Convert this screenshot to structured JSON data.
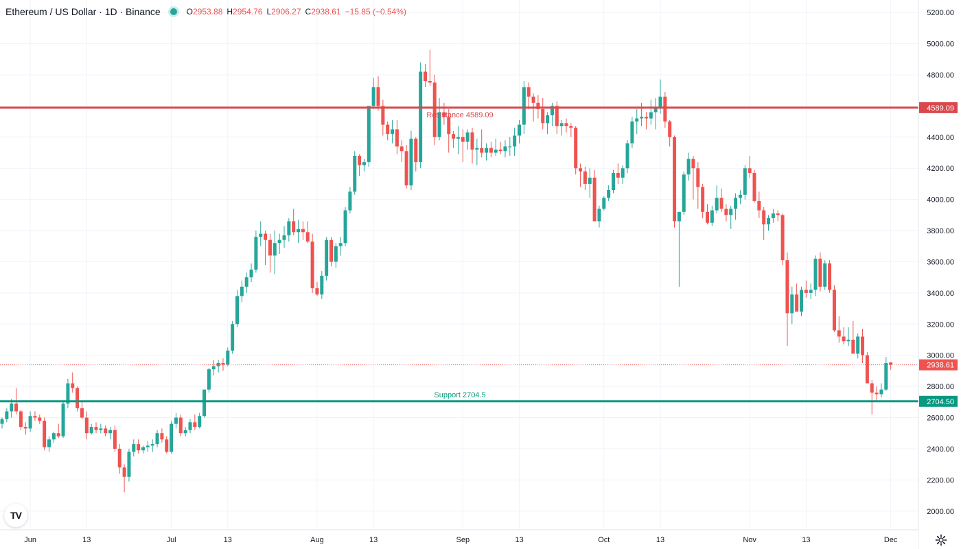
{
  "legend": {
    "symbol": "Ethereum / US Dollar · 1D · Binance",
    "open_label": "O",
    "open": "2953.88",
    "high_label": "H",
    "high": "2954.76",
    "low_label": "L",
    "low": "2906.27",
    "close_label": "C",
    "close": "2938.61",
    "change": "−15.85 (−0.54%)"
  },
  "colors": {
    "up": "#26a69a",
    "down": "#ef5350",
    "resistance": "#d9484c",
    "support": "#089981",
    "grid": "#f0f3fa",
    "text": "#131722"
  },
  "chart_data": {
    "type": "candlestick",
    "title": "Ethereum / US Dollar · 1D · Binance",
    "ylim": [
      1880,
      5280
    ],
    "y_ticks": [
      2000,
      2200,
      2400,
      2600,
      2800,
      3000,
      3200,
      3400,
      3600,
      3800,
      4000,
      4200,
      4400,
      4600,
      4800,
      5000,
      5200
    ],
    "y_tick_labels": [
      "2000.00",
      "2200.00",
      "2400.00",
      "2600.00",
      "2800.00",
      "3000.00",
      "3200.00",
      "3400.00",
      "3600.00",
      "3800.00",
      "4000.00",
      "4200.00",
      "4400.00",
      "4600.00",
      "4800.00",
      "5000.00",
      "5200.00"
    ],
    "x_ticks": [
      {
        "label": "Jun",
        "date": "2025-06-01"
      },
      {
        "label": "13",
        "date": "2025-06-13"
      },
      {
        "label": "Jul",
        "date": "2025-07-01"
      },
      {
        "label": "13",
        "date": "2025-07-13"
      },
      {
        "label": "Aug",
        "date": "2025-08-01"
      },
      {
        "label": "13",
        "date": "2025-08-13"
      },
      {
        "label": "Sep",
        "date": "2025-09-01"
      },
      {
        "label": "13",
        "date": "2025-09-13"
      },
      {
        "label": "Oct",
        "date": "2025-10-01"
      },
      {
        "label": "13",
        "date": "2025-10-13"
      },
      {
        "label": "Nov",
        "date": "2025-11-01"
      },
      {
        "label": "13",
        "date": "2025-11-13"
      },
      {
        "label": "Dec",
        "date": "2025-12-01"
      }
    ],
    "start_date": "2025-05-26",
    "levels": [
      {
        "name": "Resistance",
        "value": 4589.09,
        "label": "Resistance 4589.09",
        "axis_label": "4589.09",
        "color": "#d9484c"
      },
      {
        "name": "Support",
        "value": 2704.5,
        "label": "Support 2704.5",
        "axis_label": "2704.50",
        "color": "#089981"
      }
    ],
    "last_price": {
      "value": 2938.61,
      "label": "2938.61"
    },
    "candles": [
      [
        2560,
        2600,
        2530,
        2590
      ],
      [
        2590,
        2660,
        2570,
        2640
      ],
      [
        2640,
        2720,
        2600,
        2690
      ],
      [
        2690,
        2790,
        2620,
        2640
      ],
      [
        2640,
        2650,
        2520,
        2540
      ],
      [
        2540,
        2570,
        2490,
        2530
      ],
      [
        2530,
        2640,
        2510,
        2610
      ],
      [
        2610,
        2640,
        2580,
        2600
      ],
      [
        2600,
        2620,
        2560,
        2580
      ],
      [
        2580,
        2600,
        2390,
        2410
      ],
      [
        2410,
        2480,
        2380,
        2460
      ],
      [
        2460,
        2510,
        2440,
        2500
      ],
      [
        2500,
        2560,
        2470,
        2480
      ],
      [
        2480,
        2700,
        2470,
        2690
      ],
      [
        2690,
        2850,
        2660,
        2820
      ],
      [
        2820,
        2890,
        2760,
        2790
      ],
      [
        2790,
        2800,
        2640,
        2660
      ],
      [
        2660,
        2700,
        2590,
        2600
      ],
      [
        2600,
        2640,
        2460,
        2500
      ],
      [
        2500,
        2560,
        2490,
        2540
      ],
      [
        2540,
        2570,
        2500,
        2520
      ],
      [
        2520,
        2560,
        2500,
        2530
      ],
      [
        2530,
        2550,
        2480,
        2500
      ],
      [
        2500,
        2540,
        2460,
        2520
      ],
      [
        2520,
        2550,
        2380,
        2400
      ],
      [
        2400,
        2430,
        2240,
        2280
      ],
      [
        2280,
        2300,
        2120,
        2220
      ],
      [
        2220,
        2400,
        2190,
        2380
      ],
      [
        2380,
        2460,
        2350,
        2430
      ],
      [
        2430,
        2460,
        2370,
        2390
      ],
      [
        2390,
        2420,
        2370,
        2410
      ],
      [
        2410,
        2450,
        2380,
        2420
      ],
      [
        2420,
        2460,
        2380,
        2430
      ],
      [
        2430,
        2520,
        2410,
        2500
      ],
      [
        2500,
        2530,
        2440,
        2460
      ],
      [
        2460,
        2480,
        2370,
        2380
      ],
      [
        2380,
        2580,
        2370,
        2560
      ],
      [
        2560,
        2630,
        2530,
        2600
      ],
      [
        2600,
        2620,
        2480,
        2500
      ],
      [
        2500,
        2540,
        2480,
        2520
      ],
      [
        2520,
        2590,
        2500,
        2570
      ],
      [
        2570,
        2620,
        2520,
        2540
      ],
      [
        2540,
        2630,
        2530,
        2610
      ],
      [
        2610,
        2780,
        2600,
        2780
      ],
      [
        2780,
        2920,
        2760,
        2910
      ],
      [
        2910,
        2970,
        2870,
        2930
      ],
      [
        2930,
        2970,
        2890,
        2950
      ],
      [
        2950,
        2980,
        2900,
        2940
      ],
      [
        2940,
        3050,
        2930,
        3030
      ],
      [
        3030,
        3220,
        3010,
        3200
      ],
      [
        3200,
        3420,
        3180,
        3380
      ],
      [
        3380,
        3480,
        3340,
        3440
      ],
      [
        3440,
        3530,
        3400,
        3500
      ],
      [
        3500,
        3590,
        3470,
        3550
      ],
      [
        3550,
        3800,
        3530,
        3760
      ],
      [
        3760,
        3860,
        3700,
        3780
      ],
      [
        3780,
        3800,
        3580,
        3740
      ],
      [
        3740,
        3780,
        3530,
        3640
      ],
      [
        3640,
        3800,
        3520,
        3720
      ],
      [
        3720,
        3780,
        3650,
        3740
      ],
      [
        3740,
        3830,
        3690,
        3770
      ],
      [
        3770,
        3880,
        3730,
        3860
      ],
      [
        3860,
        3940,
        3770,
        3790
      ],
      [
        3790,
        3870,
        3720,
        3810
      ],
      [
        3810,
        3860,
        3740,
        3790
      ],
      [
        3790,
        3860,
        3720,
        3730
      ],
      [
        3730,
        3780,
        3400,
        3430
      ],
      [
        3430,
        3470,
        3380,
        3390
      ],
      [
        3390,
        3540,
        3360,
        3510
      ],
      [
        3510,
        3760,
        3480,
        3740
      ],
      [
        3740,
        3760,
        3570,
        3600
      ],
      [
        3600,
        3720,
        3560,
        3700
      ],
      [
        3700,
        3760,
        3640,
        3720
      ],
      [
        3720,
        3950,
        3700,
        3930
      ],
      [
        3930,
        4080,
        3910,
        4050
      ],
      [
        4050,
        4310,
        4030,
        4280
      ],
      [
        4280,
        4290,
        4150,
        4220
      ],
      [
        4220,
        4260,
        4180,
        4240
      ],
      [
        4240,
        4600,
        4210,
        4600
      ],
      [
        4600,
        4780,
        4580,
        4720
      ],
      [
        4720,
        4790,
        4570,
        4600
      ],
      [
        4600,
        4640,
        4410,
        4480
      ],
      [
        4480,
        4500,
        4380,
        4420
      ],
      [
        4420,
        4510,
        4360,
        4450
      ],
      [
        4450,
        4510,
        4290,
        4340
      ],
      [
        4340,
        4380,
        4240,
        4310
      ],
      [
        4310,
        4350,
        4070,
        4090
      ],
      [
        4090,
        4440,
        4060,
        4390
      ],
      [
        4390,
        4400,
        4180,
        4240
      ],
      [
        4240,
        4880,
        4200,
        4820
      ],
      [
        4820,
        4870,
        4720,
        4760
      ],
      [
        4760,
        4960,
        4730,
        4750
      ],
      [
        4750,
        4800,
        4350,
        4400
      ],
      [
        4400,
        4650,
        4380,
        4560
      ],
      [
        4560,
        4620,
        4480,
        4530
      ],
      [
        4530,
        4580,
        4300,
        4420
      ],
      [
        4420,
        4440,
        4330,
        4390
      ],
      [
        4390,
        4470,
        4290,
        4400
      ],
      [
        4400,
        4450,
        4240,
        4370
      ],
      [
        4370,
        4450,
        4320,
        4430
      ],
      [
        4430,
        4460,
        4230,
        4320
      ],
      [
        4320,
        4390,
        4220,
        4330
      ],
      [
        4330,
        4450,
        4270,
        4300
      ],
      [
        4300,
        4360,
        4250,
        4330
      ],
      [
        4330,
        4370,
        4270,
        4300
      ],
      [
        4300,
        4390,
        4280,
        4320
      ],
      [
        4320,
        4370,
        4290,
        4310
      ],
      [
        4310,
        4380,
        4270,
        4340
      ],
      [
        4340,
        4400,
        4280,
        4340
      ],
      [
        4340,
        4460,
        4280,
        4410
      ],
      [
        4410,
        4510,
        4360,
        4480
      ],
      [
        4480,
        4760,
        4420,
        4720
      ],
      [
        4720,
        4750,
        4580,
        4660
      ],
      [
        4660,
        4680,
        4500,
        4620
      ],
      [
        4620,
        4670,
        4520,
        4580
      ],
      [
        4580,
        4650,
        4450,
        4490
      ],
      [
        4490,
        4560,
        4420,
        4540
      ],
      [
        4540,
        4620,
        4470,
        4600
      ],
      [
        4600,
        4630,
        4420,
        4470
      ],
      [
        4470,
        4510,
        4410,
        4490
      ],
      [
        4490,
        4520,
        4430,
        4470
      ],
      [
        4470,
        4490,
        4400,
        4460
      ],
      [
        4460,
        4470,
        4160,
        4200
      ],
      [
        4200,
        4230,
        4080,
        4180
      ],
      [
        4180,
        4210,
        4060,
        4100
      ],
      [
        4100,
        4200,
        4010,
        4140
      ],
      [
        4140,
        4190,
        3860,
        3860
      ],
      [
        3860,
        3960,
        3820,
        3940
      ],
      [
        3940,
        4020,
        3930,
        4010
      ],
      [
        4010,
        4090,
        3990,
        4060
      ],
      [
        4060,
        4190,
        4040,
        4170
      ],
      [
        4170,
        4230,
        4100,
        4140
      ],
      [
        4140,
        4220,
        4100,
        4200
      ],
      [
        4200,
        4380,
        4170,
        4360
      ],
      [
        4360,
        4530,
        4330,
        4500
      ],
      [
        4500,
        4580,
        4420,
        4520
      ],
      [
        4520,
        4620,
        4470,
        4530
      ],
      [
        4530,
        4560,
        4450,
        4520
      ],
      [
        4520,
        4640,
        4480,
        4560
      ],
      [
        4560,
        4650,
        4450,
        4590
      ],
      [
        4590,
        4770,
        4550,
        4660
      ],
      [
        4660,
        4690,
        4460,
        4500
      ],
      [
        4500,
        4510,
        4340,
        4400
      ],
      [
        4400,
        4410,
        3820,
        3860
      ],
      [
        3860,
        3920,
        3440,
        3920
      ],
      [
        3920,
        4180,
        3900,
        4160
      ],
      [
        4160,
        4300,
        4120,
        4260
      ],
      [
        4260,
        4280,
        4000,
        4200
      ],
      [
        4200,
        4240,
        3940,
        4080
      ],
      [
        4080,
        4100,
        3880,
        3920
      ],
      [
        3920,
        3970,
        3840,
        3850
      ],
      [
        3850,
        3960,
        3830,
        3930
      ],
      [
        3930,
        4090,
        3910,
        4010
      ],
      [
        4010,
        4070,
        3920,
        3940
      ],
      [
        3940,
        3970,
        3860,
        3900
      ],
      [
        3900,
        3960,
        3810,
        3940
      ],
      [
        3940,
        4040,
        3870,
        4010
      ],
      [
        4010,
        4060,
        3970,
        4030
      ],
      [
        4030,
        4220,
        4000,
        4200
      ],
      [
        4200,
        4280,
        4140,
        4170
      ],
      [
        4170,
        4190,
        3980,
        3990
      ],
      [
        3990,
        4050,
        3880,
        3930
      ],
      [
        3930,
        3950,
        3740,
        3840
      ],
      [
        3840,
        3900,
        3800,
        3880
      ],
      [
        3880,
        3940,
        3850,
        3910
      ],
      [
        3910,
        3930,
        3860,
        3900
      ],
      [
        3900,
        3910,
        3580,
        3610
      ],
      [
        3610,
        3660,
        3060,
        3270
      ],
      [
        3270,
        3440,
        3200,
        3390
      ],
      [
        3390,
        3460,
        3280,
        3280
      ],
      [
        3280,
        3440,
        3250,
        3420
      ],
      [
        3420,
        3480,
        3370,
        3400
      ],
      [
        3400,
        3460,
        3360,
        3420
      ],
      [
        3420,
        3640,
        3380,
        3620
      ],
      [
        3620,
        3660,
        3410,
        3440
      ],
      [
        3440,
        3610,
        3420,
        3590
      ],
      [
        3590,
        3610,
        3400,
        3420
      ],
      [
        3420,
        3450,
        3150,
        3160
      ],
      [
        3160,
        3250,
        3080,
        3120
      ],
      [
        3120,
        3180,
        3070,
        3090
      ],
      [
        3090,
        3180,
        3060,
        3100
      ],
      [
        3100,
        3220,
        3010,
        3010
      ],
      [
        3010,
        3140,
        2980,
        3120
      ],
      [
        3120,
        3170,
        2950,
        3000
      ],
      [
        3000,
        3020,
        2820,
        2820
      ],
      [
        2820,
        2840,
        2620,
        2760
      ],
      [
        2760,
        2800,
        2700,
        2750
      ],
      [
        2750,
        2820,
        2730,
        2780
      ],
      [
        2780,
        2990,
        2770,
        2950
      ],
      [
        2953.88,
        2954.76,
        2906.27,
        2938.61
      ]
    ]
  },
  "settings_icon": "gear-icon",
  "logo_text": "TV"
}
